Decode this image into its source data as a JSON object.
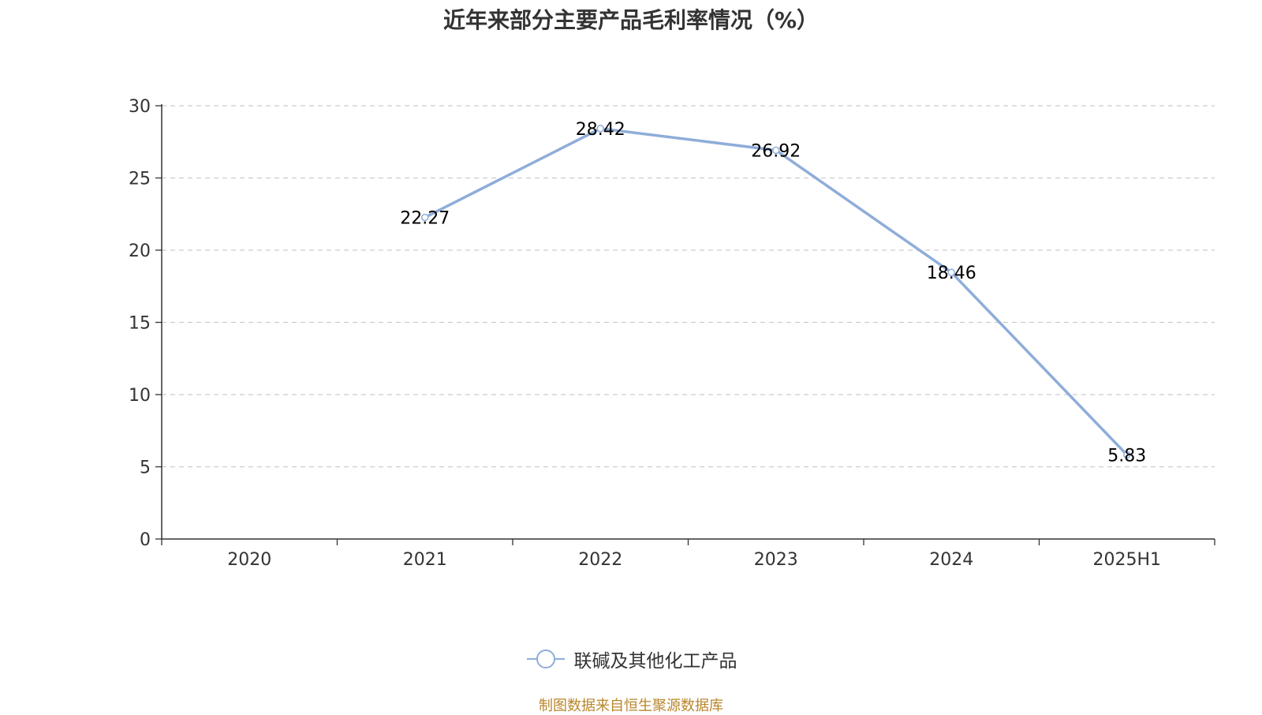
{
  "title": "近年来部分主要产品毛利率情况（%）",
  "source": "制图数据来自恒生聚源数据库",
  "colors": {
    "series": "#8eadd9",
    "axis": "#333333",
    "grid": "#cccccc",
    "source": "#b8862b"
  },
  "chart_data": {
    "type": "line",
    "title": "近年来部分主要产品毛利率情况（%）",
    "categories": [
      "2020",
      "2021",
      "2022",
      "2023",
      "2024",
      "2025H1"
    ],
    "series": [
      {
        "name": "联碱及其他化工产品",
        "values": [
          null,
          22.27,
          28.42,
          26.92,
          18.46,
          5.83
        ]
      }
    ],
    "data_labels": [
      "",
      "22.27",
      "28.42",
      "26.92",
      "18.46",
      "5.83"
    ],
    "y_ticks": [
      "0",
      "5",
      "10",
      "15",
      "20",
      "25",
      "30"
    ],
    "ylim": [
      0,
      30
    ],
    "grid": true,
    "legend_position": "bottom-center"
  }
}
